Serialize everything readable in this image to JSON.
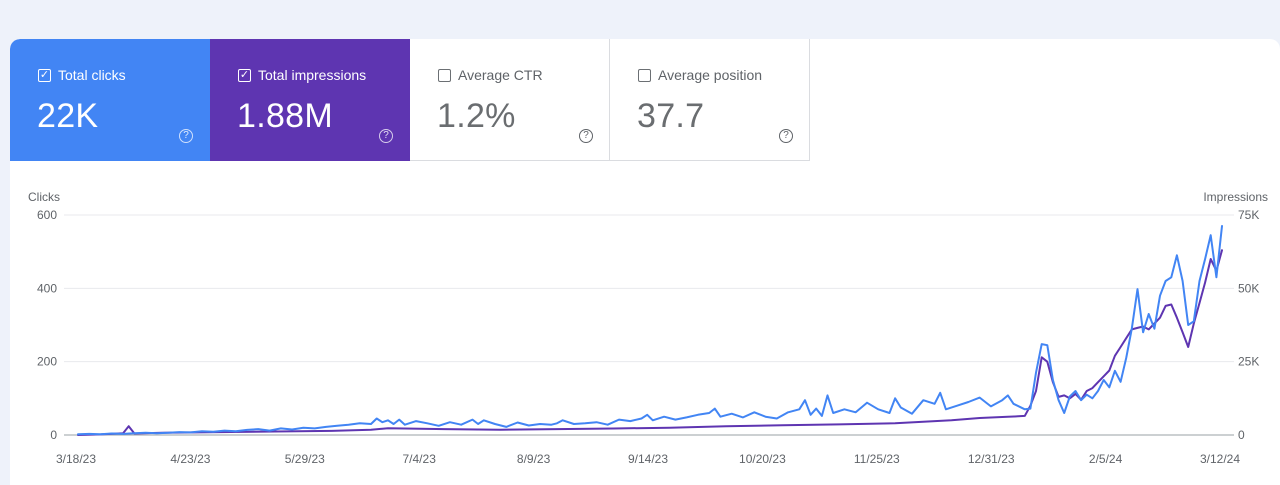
{
  "metrics": [
    {
      "label": "Total clicks",
      "value": "22K",
      "checked": true,
      "color": "#4285f4"
    },
    {
      "label": "Total impressions",
      "value": "1.88M",
      "checked": true,
      "color": "#5e35b1"
    },
    {
      "label": "Average CTR",
      "value": "1.2%",
      "checked": false
    },
    {
      "label": "Average position",
      "value": "37.7",
      "checked": false
    }
  ],
  "help_glyph": "?",
  "chart_data": {
    "type": "line",
    "left_axis": {
      "label": "Clicks",
      "ticks": [
        0,
        200,
        400,
        600
      ],
      "range": [
        0,
        600
      ]
    },
    "right_axis": {
      "label": "Impressions",
      "ticks": [
        "0",
        "25K",
        "50K",
        "75K"
      ],
      "range": [
        0,
        75000
      ]
    },
    "x_ticks": [
      "3/18/23",
      "4/23/23",
      "5/29/23",
      "7/4/23",
      "8/9/23",
      "9/14/23",
      "10/20/23",
      "11/25/23",
      "12/31/23",
      "2/5/24",
      "3/12/24"
    ],
    "series": [
      {
        "name": "Total clicks",
        "color": "#4285f4",
        "axis": "left",
        "points": [
          [
            0,
            2
          ],
          [
            4,
            3
          ],
          [
            8,
            2
          ],
          [
            12,
            4
          ],
          [
            16,
            3
          ],
          [
            20,
            5
          ],
          [
            24,
            6
          ],
          [
            28,
            5
          ],
          [
            32,
            6
          ],
          [
            36,
            8
          ],
          [
            40,
            7
          ],
          [
            44,
            10
          ],
          [
            48,
            9
          ],
          [
            52,
            12
          ],
          [
            56,
            10
          ],
          [
            60,
            14
          ],
          [
            64,
            16
          ],
          [
            68,
            12
          ],
          [
            72,
            18
          ],
          [
            76,
            15
          ],
          [
            80,
            20
          ],
          [
            84,
            18
          ],
          [
            88,
            22
          ],
          [
            92,
            25
          ],
          [
            96,
            28
          ],
          [
            100,
            32
          ],
          [
            104,
            30
          ],
          [
            106,
            45
          ],
          [
            108,
            35
          ],
          [
            110,
            40
          ],
          [
            112,
            30
          ],
          [
            114,
            42
          ],
          [
            116,
            28
          ],
          [
            120,
            38
          ],
          [
            124,
            32
          ],
          [
            128,
            25
          ],
          [
            132,
            35
          ],
          [
            136,
            28
          ],
          [
            140,
            42
          ],
          [
            142,
            30
          ],
          [
            144,
            40
          ],
          [
            148,
            30
          ],
          [
            152,
            22
          ],
          [
            156,
            34
          ],
          [
            160,
            26
          ],
          [
            164,
            30
          ],
          [
            168,
            28
          ],
          [
            170,
            32
          ],
          [
            172,
            40
          ],
          [
            176,
            30
          ],
          [
            180,
            32
          ],
          [
            184,
            35
          ],
          [
            188,
            28
          ],
          [
            192,
            42
          ],
          [
            196,
            38
          ],
          [
            200,
            45
          ],
          [
            202,
            55
          ],
          [
            204,
            40
          ],
          [
            208,
            50
          ],
          [
            212,
            42
          ],
          [
            216,
            48
          ],
          [
            220,
            55
          ],
          [
            224,
            60
          ],
          [
            226,
            72
          ],
          [
            228,
            50
          ],
          [
            232,
            58
          ],
          [
            236,
            48
          ],
          [
            240,
            62
          ],
          [
            244,
            50
          ],
          [
            248,
            45
          ],
          [
            252,
            62
          ],
          [
            256,
            70
          ],
          [
            258,
            95
          ],
          [
            260,
            55
          ],
          [
            262,
            72
          ],
          [
            264,
            52
          ],
          [
            266,
            108
          ],
          [
            268,
            60
          ],
          [
            272,
            70
          ],
          [
            276,
            62
          ],
          [
            280,
            88
          ],
          [
            284,
            70
          ],
          [
            288,
            60
          ],
          [
            290,
            100
          ],
          [
            292,
            75
          ],
          [
            296,
            58
          ],
          [
            300,
            95
          ],
          [
            304,
            85
          ],
          [
            306,
            115
          ],
          [
            308,
            70
          ],
          [
            312,
            80
          ],
          [
            316,
            90
          ],
          [
            320,
            102
          ],
          [
            324,
            78
          ],
          [
            328,
            95
          ],
          [
            330,
            108
          ],
          [
            332,
            85
          ],
          [
            336,
            70
          ],
          [
            338,
            72
          ],
          [
            340,
            170
          ],
          [
            342,
            248
          ],
          [
            344,
            245
          ],
          [
            346,
            150
          ],
          [
            348,
            95
          ],
          [
            350,
            60
          ],
          [
            352,
            105
          ],
          [
            354,
            120
          ],
          [
            356,
            95
          ],
          [
            358,
            110
          ],
          [
            360,
            100
          ],
          [
            362,
            120
          ],
          [
            364,
            150
          ],
          [
            366,
            130
          ],
          [
            368,
            175
          ],
          [
            370,
            145
          ],
          [
            372,
            210
          ],
          [
            374,
            290
          ],
          [
            376,
            398
          ],
          [
            378,
            280
          ],
          [
            380,
            330
          ],
          [
            382,
            290
          ],
          [
            384,
            380
          ],
          [
            386,
            420
          ],
          [
            388,
            430
          ],
          [
            390,
            490
          ],
          [
            392,
            420
          ],
          [
            394,
            300
          ],
          [
            396,
            310
          ],
          [
            398,
            420
          ],
          [
            400,
            480
          ],
          [
            402,
            545
          ],
          [
            404,
            430
          ],
          [
            406,
            570
          ]
        ]
      },
      {
        "name": "Total impressions",
        "color": "#5e35b1",
        "axis": "right",
        "points": [
          [
            0,
            0
          ],
          [
            8,
            200
          ],
          [
            16,
            600
          ],
          [
            18,
            3000
          ],
          [
            20,
            500
          ],
          [
            30,
            800
          ],
          [
            50,
            1000
          ],
          [
            70,
            1200
          ],
          [
            90,
            1400
          ],
          [
            104,
            1800
          ],
          [
            110,
            2300
          ],
          [
            130,
            2000
          ],
          [
            150,
            1800
          ],
          [
            170,
            2000
          ],
          [
            190,
            2200
          ],
          [
            210,
            2500
          ],
          [
            230,
            3000
          ],
          [
            250,
            3300
          ],
          [
            270,
            3600
          ],
          [
            290,
            4000
          ],
          [
            300,
            4500
          ],
          [
            310,
            5000
          ],
          [
            320,
            5800
          ],
          [
            330,
            6200
          ],
          [
            336,
            6500
          ],
          [
            338,
            10000
          ],
          [
            340,
            15000
          ],
          [
            342,
            26500
          ],
          [
            344,
            25000
          ],
          [
            346,
            18000
          ],
          [
            348,
            13000
          ],
          [
            350,
            13500
          ],
          [
            352,
            12500
          ],
          [
            354,
            14000
          ],
          [
            356,
            12000
          ],
          [
            358,
            15000
          ],
          [
            360,
            16000
          ],
          [
            362,
            18000
          ],
          [
            364,
            20000
          ],
          [
            366,
            22000
          ],
          [
            368,
            27000
          ],
          [
            370,
            30000
          ],
          [
            372,
            33000
          ],
          [
            374,
            36000
          ],
          [
            376,
            36500
          ],
          [
            378,
            37000
          ],
          [
            380,
            36000
          ],
          [
            382,
            38000
          ],
          [
            384,
            40000
          ],
          [
            386,
            44000
          ],
          [
            388,
            44500
          ],
          [
            390,
            40000
          ],
          [
            392,
            35000
          ],
          [
            394,
            30000
          ],
          [
            396,
            38000
          ],
          [
            398,
            45000
          ],
          [
            400,
            52000
          ],
          [
            402,
            60000
          ],
          [
            404,
            56000
          ],
          [
            406,
            63000
          ]
        ]
      }
    ]
  }
}
